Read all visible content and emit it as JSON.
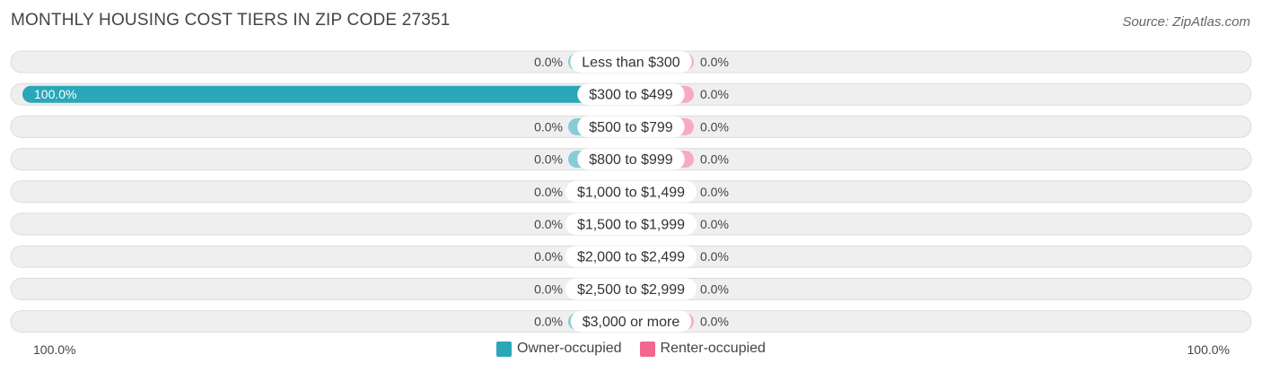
{
  "header": {
    "title": "MONTHLY HOUSING COST TIERS IN ZIP CODE 27351",
    "source": "Source: ZipAtlas.com"
  },
  "colors": {
    "owner": "#2aa7b8",
    "owner_light": "#86ccd6",
    "renter": "#f2668f",
    "renter_light": "#f7aac2",
    "track": "#efefef",
    "track_border": "#dcdcdc"
  },
  "chart_data": {
    "type": "bar",
    "orientation": "horizontal-diverging",
    "categories": [
      "Less than $300",
      "$300 to $499",
      "$500 to $799",
      "$800 to $999",
      "$1,000 to $1,499",
      "$1,500 to $1,999",
      "$2,000 to $2,499",
      "$2,500 to $2,999",
      "$3,000 or more"
    ],
    "series": [
      {
        "name": "Owner-occupied",
        "values": [
          0.0,
          100.0,
          0.0,
          0.0,
          0.0,
          0.0,
          0.0,
          0.0,
          0.0
        ],
        "labels": [
          "0.0%",
          "100.0%",
          "0.0%",
          "0.0%",
          "0.0%",
          "0.0%",
          "0.0%",
          "0.0%",
          "0.0%"
        ]
      },
      {
        "name": "Renter-occupied",
        "values": [
          0.0,
          0.0,
          0.0,
          0.0,
          0.0,
          0.0,
          0.0,
          0.0,
          0.0
        ],
        "labels": [
          "0.0%",
          "0.0%",
          "0.0%",
          "0.0%",
          "0.0%",
          "0.0%",
          "0.0%",
          "0.0%",
          "0.0%"
        ]
      }
    ],
    "xlim": [
      0,
      100
    ],
    "axis_left_label": "100.0%",
    "axis_right_label": "100.0%",
    "legend_position": "bottom-center"
  }
}
